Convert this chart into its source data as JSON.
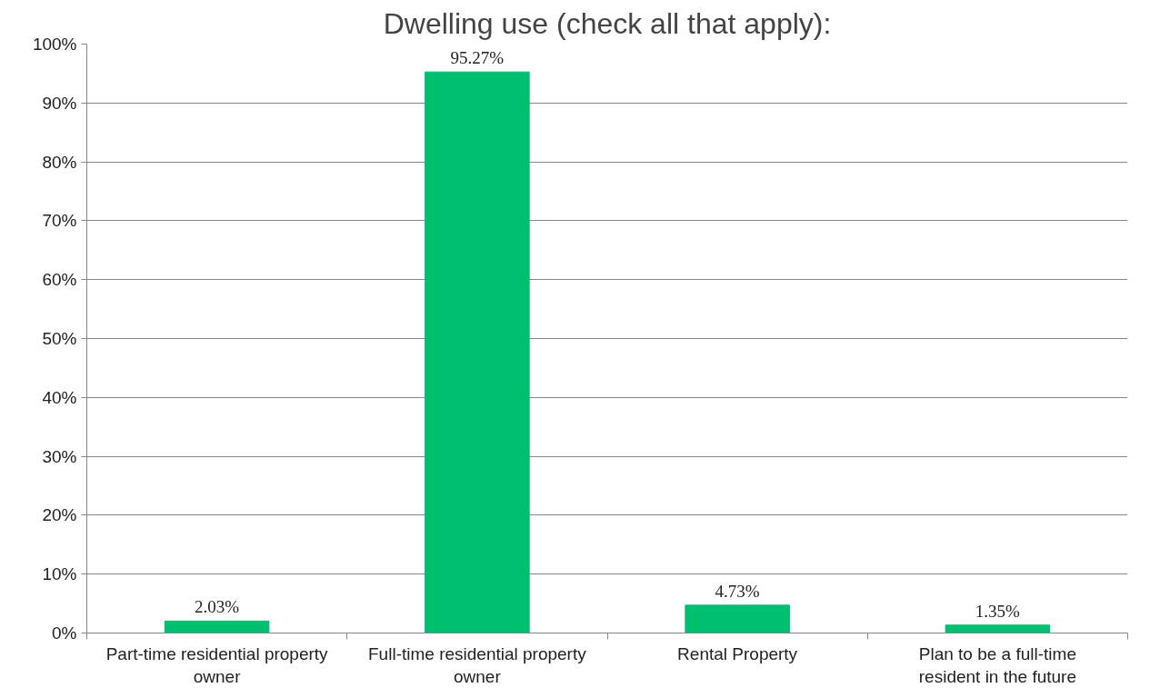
{
  "chart_data": {
    "type": "bar",
    "title": "Dwelling use (check all that apply):",
    "categories": [
      "Part-time residential property owner",
      "Full-time residential property owner",
      "Rental Property",
      "Plan to be a full-time resident in the future"
    ],
    "values": [
      2.03,
      95.27,
      4.73,
      1.35
    ],
    "value_labels": [
      "2.03%",
      "95.27%",
      "4.73%",
      "1.35%"
    ],
    "color": "#00bf6f",
    "ylim": [
      0,
      100
    ],
    "yticks": [
      {
        "value": 0,
        "label": "0%"
      },
      {
        "value": 10,
        "label": "10%"
      },
      {
        "value": 20,
        "label": "20%"
      },
      {
        "value": 30,
        "label": "30%"
      },
      {
        "value": 40,
        "label": "40%"
      },
      {
        "value": 50,
        "label": "50%"
      },
      {
        "value": 60,
        "label": "60%"
      },
      {
        "value": 70,
        "label": "70%"
      },
      {
        "value": 80,
        "label": "80%"
      },
      {
        "value": 90,
        "label": "90%"
      },
      {
        "value": 100,
        "label": "100%"
      }
    ],
    "grid": "y"
  }
}
